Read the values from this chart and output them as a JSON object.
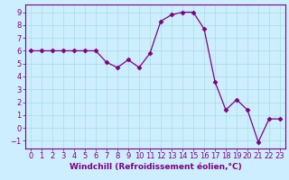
{
  "x": [
    0,
    1,
    2,
    3,
    4,
    5,
    6,
    7,
    8,
    9,
    10,
    11,
    12,
    13,
    14,
    15,
    16,
    17,
    18,
    19,
    20,
    21,
    22,
    23
  ],
  "y": [
    6,
    6,
    6,
    6,
    6,
    6,
    6,
    5.1,
    4.7,
    5.3,
    4.7,
    5.8,
    8.3,
    8.8,
    9.0,
    9.0,
    7.7,
    3.6,
    1.4,
    2.2,
    1.4,
    -1.1,
    0.7,
    0.7
  ],
  "line_color": "#800080",
  "marker": "D",
  "marker_size": 2.5,
  "bg_color": "#cceeff",
  "grid_color": "#aadddd",
  "xlabel": "Windchill (Refroidissement éolien,°C)",
  "xlabel_fontsize": 6.5,
  "xlim": [
    -0.5,
    23.5
  ],
  "ylim": [
    -1.6,
    9.6
  ],
  "yticks": [
    -1,
    0,
    1,
    2,
    3,
    4,
    5,
    6,
    7,
    8,
    9
  ],
  "xticks": [
    0,
    1,
    2,
    3,
    4,
    5,
    6,
    7,
    8,
    9,
    10,
    11,
    12,
    13,
    14,
    15,
    16,
    17,
    18,
    19,
    20,
    21,
    22,
    23
  ],
  "tick_fontsize": 6,
  "spine_color": "#800080"
}
